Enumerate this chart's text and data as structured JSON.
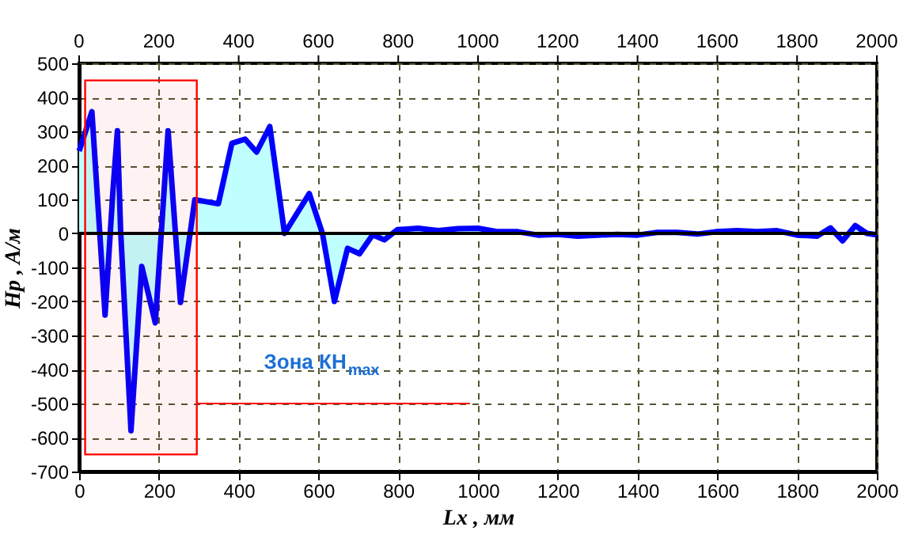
{
  "chart_data": {
    "type": "area",
    "xlabel": "Lx , мм",
    "ylabel": "Hp , A/м",
    "x": [
      0,
      19,
      32,
      65,
      85,
      96,
      104,
      130,
      157,
      191,
      223,
      254,
      290,
      349,
      383,
      416,
      445,
      478,
      515,
      577,
      610,
      640,
      673,
      703,
      736,
      765,
      798,
      850,
      900,
      950,
      1000,
      1050,
      1100,
      1150,
      1200,
      1250,
      1300,
      1350,
      1400,
      1450,
      1500,
      1550,
      1600,
      1650,
      1700,
      1750,
      1800,
      1850,
      1884,
      1914,
      1946,
      1975,
      2000
    ],
    "series": [
      {
        "color": "#0000ff",
        "values": [
          242,
          310,
          358,
          -240,
          130,
          302,
          8,
          -580,
          -97,
          -263,
          302,
          -203,
          99,
          87,
          265,
          277,
          239,
          314,
          0,
          117,
          0,
          -200,
          -44,
          -60,
          -4,
          -19,
          11,
          15,
          8,
          14,
          15,
          5,
          5,
          -5,
          -3,
          -8,
          -5,
          -3,
          -5,
          3,
          3,
          -2,
          5,
          8,
          5,
          8,
          -5,
          -8,
          16,
          -22,
          23,
          0,
          -4
        ]
      }
    ],
    "xlim": [
      0,
      2000
    ],
    "xticks": [
      0,
      200,
      400,
      600,
      800,
      {
        "value": 1000,
        "label": "1000"
      },
      {
        "value": 1200,
        "label": "1200"
      },
      {
        "value": 1400,
        "label": "1400"
      },
      {
        "value": 1600,
        "label": "1600"
      },
      {
        "value": 1800,
        "label": "1800"
      },
      {
        "value": 2000,
        "label": "2000"
      }
    ],
    "x2lim": [
      0,
      2000
    ],
    "x2ticks": [
      0,
      200,
      400,
      600,
      800,
      {
        "value": 1000,
        "label": "1000"
      },
      {
        "value": 1200,
        "label": "1200"
      },
      {
        "value": 1400,
        "label": "1400"
      },
      {
        "value": 1600,
        "label": "1600"
      },
      {
        "value": 1800,
        "label": "1800"
      },
      {
        "value": 2000,
        "label": "2000"
      }
    ],
    "ylim": [
      -700,
      500
    ],
    "yticks": [
      -700,
      -600,
      -500,
      -400,
      -300,
      -200,
      -100,
      0,
      100,
      200,
      300,
      400,
      500
    ],
    "grid": true,
    "ref_lines": [
      {
        "axis": "y",
        "value": 0,
        "color": "#000000"
      },
      {
        "axis": "y",
        "value": -500,
        "color": "#ff0000",
        "label": "Зона КН$_{max}$"
      }
    ],
    "bands": [
      {
        "axis": "x",
        "from": 15,
        "to": 295,
        "color": "#ff0000"
      }
    ]
  }
}
